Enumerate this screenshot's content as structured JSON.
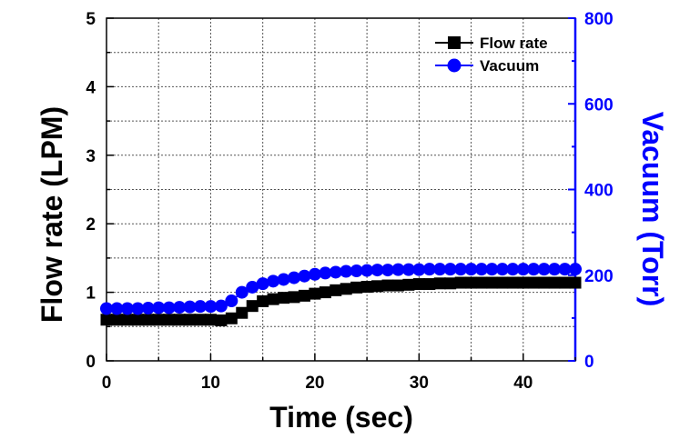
{
  "colors": {
    "flow": "#000000",
    "vacuum": "#0000ff",
    "grid": "#555555"
  },
  "chart_data": {
    "type": "line",
    "title": "",
    "xlabel": "Time (sec)",
    "ylabel_left": "Flow rate (LPM)",
    "ylabel_right": "Vacuum (Torr)",
    "xlim": [
      0,
      45
    ],
    "ylim_left": [
      0,
      5
    ],
    "ylim_right": [
      0,
      800
    ],
    "x_ticks": [
      "0",
      "10",
      "20",
      "30",
      "40"
    ],
    "y_left_ticks": [
      "0",
      "1",
      "2",
      "3",
      "4",
      "5"
    ],
    "y_right_ticks": [
      "0",
      "200",
      "400",
      "600",
      "800"
    ],
    "grid": true,
    "legend_position": "top-right",
    "x": [
      0,
      1,
      2,
      3,
      4,
      5,
      6,
      7,
      8,
      9,
      10,
      11,
      12,
      13,
      14,
      15,
      16,
      17,
      18,
      19,
      20,
      21,
      22,
      23,
      24,
      25,
      26,
      27,
      28,
      29,
      30,
      31,
      32,
      33,
      34,
      35,
      36,
      37,
      38,
      39,
      40,
      41,
      42,
      43,
      44,
      45
    ],
    "series": [
      {
        "name": "Flow rate",
        "axis": "left",
        "marker": "square",
        "values": [
          0.6,
          0.6,
          0.6,
          0.6,
          0.6,
          0.6,
          0.6,
          0.6,
          0.6,
          0.6,
          0.6,
          0.59,
          0.62,
          0.7,
          0.8,
          0.87,
          0.9,
          0.92,
          0.93,
          0.95,
          0.98,
          1.0,
          1.03,
          1.05,
          1.07,
          1.08,
          1.09,
          1.1,
          1.1,
          1.11,
          1.12,
          1.12,
          1.13,
          1.13,
          1.14,
          1.14,
          1.14,
          1.14,
          1.14,
          1.14,
          1.14,
          1.14,
          1.14,
          1.14,
          1.14,
          1.14
        ]
      },
      {
        "name": "Vacuum",
        "axis": "right",
        "marker": "circle",
        "values": [
          122,
          122,
          122,
          122,
          123,
          124,
          124,
          125,
          126,
          127,
          127,
          128,
          140,
          160,
          172,
          180,
          186,
          190,
          194,
          198,
          202,
          205,
          207,
          209,
          210,
          211,
          212,
          212,
          213,
          213,
          213,
          214,
          214,
          214,
          214,
          214,
          214,
          214,
          214,
          214,
          214,
          214,
          214,
          214,
          214,
          214
        ]
      }
    ]
  }
}
